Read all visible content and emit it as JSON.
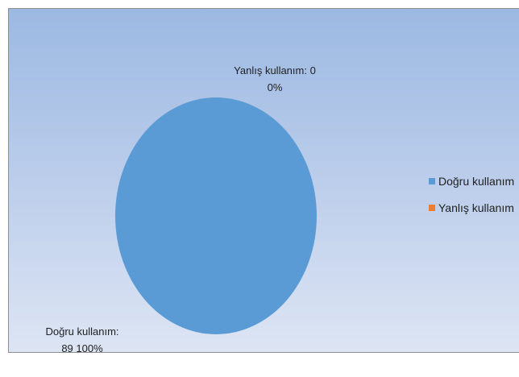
{
  "chart_data": {
    "type": "pie",
    "categories": [
      "Doğru kullanım",
      "Yanlış kullanım"
    ],
    "values": [
      89,
      0
    ],
    "percents": [
      "100%",
      "0%"
    ],
    "colors": [
      "#5b9bd5",
      "#ed7d31"
    ],
    "legend_position": "right",
    "data_labels": [
      {
        "line1": "Doğru kullanım:",
        "line2": "89 100%"
      },
      {
        "line1": "Yanlış kullanım: 0",
        "line2": "0%"
      }
    ]
  }
}
